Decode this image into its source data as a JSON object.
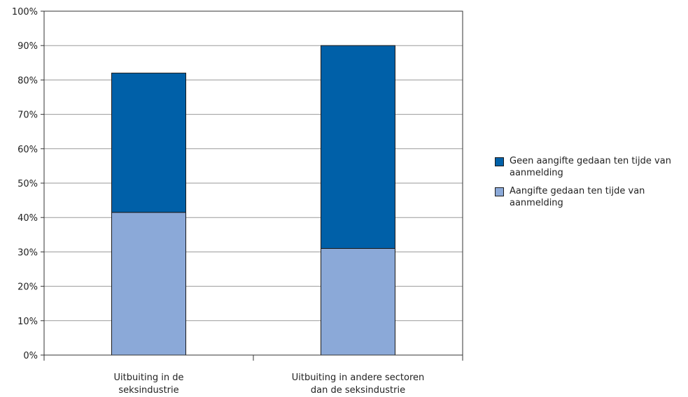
{
  "chart_data": {
    "type": "bar",
    "stacked": true,
    "categories": [
      [
        "Uitbuiting in de",
        "seksindustrie"
      ],
      [
        "Uitbuiting in andere sectoren",
        "dan de seksindustrie"
      ]
    ],
    "series": [
      {
        "name": "Aangifte gedaan ten tijde van aanmelding",
        "values": [
          41.5,
          31
        ],
        "color": "#8ba9d8"
      },
      {
        "name": "Geen aangifte gedaan ten tijde van aanmelding",
        "values": [
          40.5,
          59
        ],
        "color": "#0060a8"
      }
    ],
    "yticks": [
      "0%",
      "10%",
      "20%",
      "30%",
      "40%",
      "50%",
      "60%",
      "70%",
      "80%",
      "90%",
      "100%"
    ],
    "ylim": [
      0,
      100
    ],
    "grid": true,
    "legend_placement": "right",
    "legend": [
      {
        "label": [
          "Geen aangifte gedaan ten tijde van",
          "aanmelding"
        ],
        "color": "#0060a8"
      },
      {
        "label": [
          "Aangifte gedaan ten tijde van",
          "aanmelding"
        ],
        "color": "#8ba9d8"
      }
    ]
  }
}
